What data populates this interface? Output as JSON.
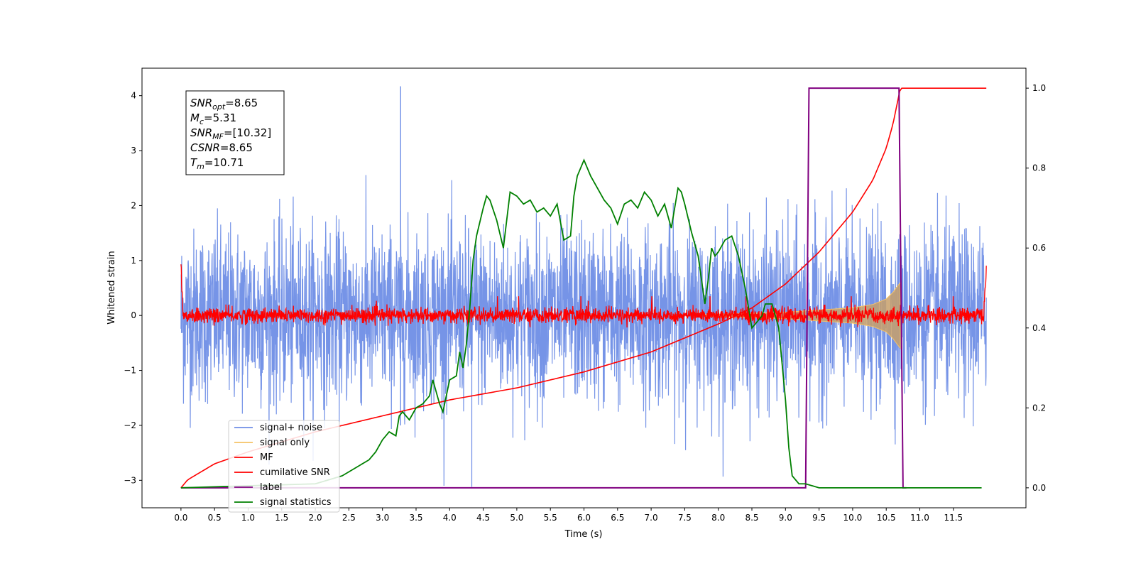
{
  "chart_data": {
    "type": "line",
    "title": "",
    "xlabel": "Time (s)",
    "ylabel_left": "Whitened strain",
    "ylabel_right": "",
    "xlim": [
      -0.58,
      12.58
    ],
    "ylim_left": [
      -3.5,
      4.5
    ],
    "ylim_right": [
      -0.05,
      1.05
    ],
    "x_ticks": [
      0.0,
      0.5,
      1.0,
      1.5,
      2.0,
      2.5,
      3.0,
      3.5,
      4.0,
      4.5,
      5.0,
      5.5,
      6.0,
      6.5,
      7.0,
      7.5,
      8.0,
      8.5,
      9.0,
      9.5,
      10.0,
      10.5,
      11.0,
      11.5
    ],
    "x_tick_labels": [
      "0.0",
      "0.5",
      "1.0",
      "1.5",
      "2.0",
      "2.5",
      "3.0",
      "3.5",
      "4.0",
      "4.5",
      "5.0",
      "5.5",
      "6.0",
      "6.5",
      "7.0",
      "7.5",
      "8.0",
      "8.5",
      "9.0",
      "9.5",
      "10.0",
      "10.5",
      "11.0",
      "11.5"
    ],
    "y_left_ticks": [
      4,
      3,
      2,
      1,
      0,
      -1,
      -2,
      -3
    ],
    "y_left_tick_labels": [
      "4",
      "3",
      "2",
      "1",
      "0",
      "−1",
      "−2",
      "−3"
    ],
    "y_right_ticks": [
      1.0,
      0.8,
      0.6,
      0.4,
      0.2,
      0.0
    ],
    "y_right_tick_labels": [
      "1.0",
      "0.8",
      "0.6",
      "0.4",
      "0.2",
      "0.0"
    ],
    "grid": false,
    "legend_position": "lower-left",
    "annotation": {
      "lines": [
        {
          "main": "SNR",
          "sub": "opt",
          "rest": "=8.65"
        },
        {
          "main": "M",
          "sub": "c",
          "rest": "=5.31"
        },
        {
          "main": "SNR",
          "sub": "MF",
          "rest": "=[10.32]"
        },
        {
          "main": "CSNR",
          "sub": "",
          "rest": "=8.65"
        },
        {
          "main": "T",
          "sub": "m",
          "rest": "=10.71"
        }
      ]
    },
    "series": [
      {
        "name": "signal+ noise",
        "axis": "left",
        "color": "#6f8ee6",
        "kind": "noise",
        "x_range": [
          0.0,
          11.99
        ],
        "amplitude_typical": 2.2,
        "peak_max": 4.17,
        "trough_min": -3.12
      },
      {
        "name": "signal only",
        "axis": "left",
        "color": "#f5c266",
        "kind": "chirp",
        "x_range": [
          7.8,
          10.71
        ],
        "envelope": {
          "x": [
            7.8,
            8.5,
            9.0,
            9.5,
            10.0,
            10.3,
            10.5,
            10.6,
            10.71
          ],
          "amp": [
            0.02,
            0.04,
            0.06,
            0.1,
            0.14,
            0.2,
            0.3,
            0.42,
            0.6
          ]
        }
      },
      {
        "name": "MF",
        "axis": "left",
        "color": "#ff0000",
        "kind": "noise",
        "x_range": [
          0.0,
          11.99
        ],
        "amplitude_typical": 0.2,
        "edge_peak_start": 1.0,
        "edge_peak_end": 0.88
      },
      {
        "name": "cumilative SNR",
        "axis": "right",
        "color": "#ff0000",
        "x": [
          0.0,
          0.1,
          0.5,
          1.0,
          2.0,
          3.0,
          4.0,
          5.0,
          6.0,
          7.0,
          8.0,
          8.5,
          9.0,
          9.5,
          10.0,
          10.3,
          10.5,
          10.6,
          10.71,
          11.99
        ],
        "y": [
          0.0,
          0.02,
          0.06,
          0.09,
          0.14,
          0.18,
          0.22,
          0.25,
          0.29,
          0.34,
          0.41,
          0.45,
          0.51,
          0.59,
          0.69,
          0.77,
          0.85,
          0.91,
          1.0,
          1.0
        ]
      },
      {
        "name": "label",
        "axis": "right",
        "color": "#800080",
        "x": [
          0.0,
          9.3,
          9.35,
          10.69,
          10.75,
          10.8
        ],
        "y": [
          0.0,
          0.0,
          1.0,
          1.0,
          0.0,
          0.0
        ]
      },
      {
        "name": "signal statistics",
        "axis": "right",
        "color": "#008000",
        "x": [
          0.0,
          2.0,
          2.2,
          2.4,
          2.6,
          2.8,
          2.9,
          3.0,
          3.1,
          3.2,
          3.25,
          3.3,
          3.4,
          3.5,
          3.6,
          3.7,
          3.75,
          3.8,
          3.85,
          3.9,
          4.0,
          4.1,
          4.15,
          4.2,
          4.25,
          4.3,
          4.35,
          4.4,
          4.5,
          4.55,
          4.6,
          4.7,
          4.8,
          4.9,
          5.0,
          5.1,
          5.2,
          5.3,
          5.4,
          5.5,
          5.6,
          5.7,
          5.8,
          5.85,
          5.9,
          6.0,
          6.1,
          6.2,
          6.3,
          6.4,
          6.5,
          6.6,
          6.7,
          6.8,
          6.9,
          7.0,
          7.1,
          7.2,
          7.3,
          7.4,
          7.45,
          7.5,
          7.6,
          7.7,
          7.8,
          7.85,
          7.9,
          7.95,
          8.0,
          8.1,
          8.2,
          8.3,
          8.4,
          8.5,
          8.6,
          8.65,
          8.7,
          8.8,
          8.9,
          9.0,
          9.05,
          9.1,
          9.2,
          9.3,
          9.5,
          10.0,
          11.0,
          11.92
        ],
        "y": [
          0.0,
          0.01,
          0.02,
          0.03,
          0.05,
          0.07,
          0.09,
          0.12,
          0.14,
          0.13,
          0.18,
          0.19,
          0.17,
          0.2,
          0.21,
          0.23,
          0.27,
          0.24,
          0.21,
          0.19,
          0.27,
          0.28,
          0.34,
          0.3,
          0.36,
          0.45,
          0.57,
          0.63,
          0.7,
          0.73,
          0.72,
          0.67,
          0.6,
          0.74,
          0.73,
          0.71,
          0.72,
          0.69,
          0.7,
          0.68,
          0.71,
          0.62,
          0.63,
          0.73,
          0.78,
          0.82,
          0.78,
          0.75,
          0.72,
          0.7,
          0.66,
          0.71,
          0.72,
          0.7,
          0.74,
          0.72,
          0.68,
          0.71,
          0.65,
          0.75,
          0.74,
          0.71,
          0.64,
          0.58,
          0.46,
          0.52,
          0.6,
          0.58,
          0.59,
          0.62,
          0.63,
          0.58,
          0.5,
          0.4,
          0.42,
          0.43,
          0.46,
          0.46,
          0.4,
          0.22,
          0.1,
          0.03,
          0.01,
          0.01,
          0.0,
          0.0,
          0.0,
          0.0
        ]
      }
    ]
  }
}
